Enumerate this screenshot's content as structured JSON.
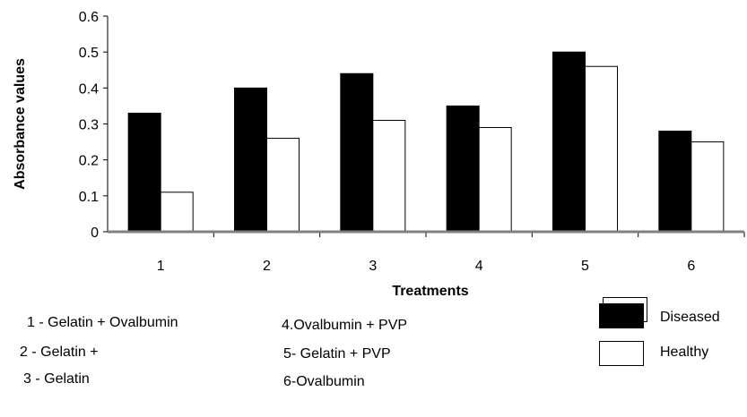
{
  "chart_data": {
    "type": "bar",
    "title": "",
    "xlabel": "Treatments",
    "ylabel": "Absorbance values",
    "categories": [
      "1",
      "2",
      "3",
      "4",
      "5",
      "6"
    ],
    "series": [
      {
        "name": "Diseased",
        "color": "#000000",
        "values": [
          0.33,
          0.4,
          0.44,
          0.35,
          0.5,
          0.28
        ]
      },
      {
        "name": "Healthy",
        "color": "#ffffff",
        "values": [
          0.11,
          0.26,
          0.31,
          0.29,
          0.46,
          0.25
        ]
      }
    ],
    "ylim": [
      0,
      0.6
    ],
    "yticks": [
      "0",
      "0.1",
      "0.2",
      "0.3",
      "0.4",
      "0.5",
      "0.6"
    ],
    "grid": false,
    "legend_position": "bottom-right"
  },
  "legend": {
    "diseased_label": "Diseased",
    "healthy_label": "Healthy"
  },
  "notes": [
    "1 - Gelatin + Ovalbumin",
    "2 - Gelatin +",
    "3 - Gelatin",
    "4.Ovalbumin + PVP",
    "5- Gelatin + PVP",
    "6-Ovalbumin"
  ]
}
